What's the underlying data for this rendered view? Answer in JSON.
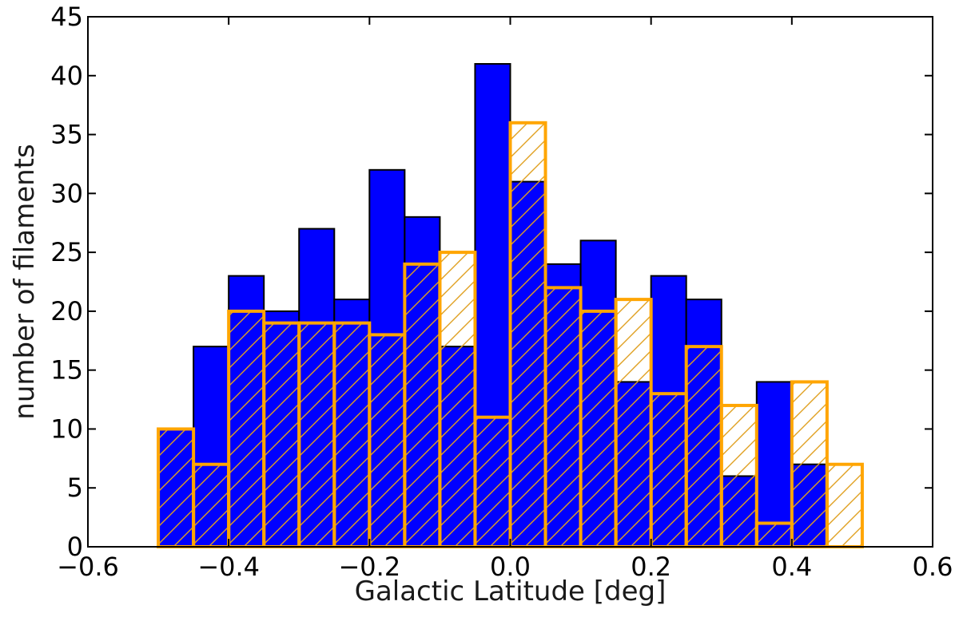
{
  "chart_data": {
    "type": "bar",
    "bin_edges": [
      -0.5,
      -0.45,
      -0.4,
      -0.35,
      -0.3,
      -0.25,
      -0.2,
      -0.15,
      -0.1,
      -0.05,
      0.0,
      0.05,
      0.1,
      0.15,
      0.2,
      0.25,
      0.3,
      0.35,
      0.4,
      0.45,
      0.5
    ],
    "series": [
      {
        "values": [
          10,
          17,
          23,
          20,
          27,
          21,
          32,
          28,
          17,
          41,
          31,
          24,
          26,
          14,
          23,
          21,
          6,
          14,
          7,
          0
        ],
        "fill": "#0000ff",
        "edge": "#000000",
        "hatch": false
      },
      {
        "values": [
          10,
          7,
          20,
          19,
          19,
          19,
          18,
          24,
          25,
          11,
          36,
          22,
          20,
          21,
          13,
          17,
          12,
          2,
          14,
          7
        ],
        "fill": "none",
        "edge": "#ffa500",
        "hatch": true
      }
    ],
    "xlabel": "Galactic Latitude [deg]",
    "ylabel": "number of filaments",
    "xlim": [
      -0.6,
      0.6
    ],
    "ylim": [
      0,
      45
    ],
    "xticks": [
      -0.6,
      -0.4,
      -0.2,
      0.0,
      0.2,
      0.4,
      0.6
    ],
    "xtick_labels": [
      "−0.6",
      "−0.4",
      "−0.2",
      "0.0",
      "0.2",
      "0.4",
      "0.6"
    ],
    "yticks": [
      0,
      5,
      10,
      15,
      20,
      25,
      30,
      35,
      40,
      45
    ],
    "ytick_labels": [
      "0",
      "5",
      "10",
      "15",
      "20",
      "25",
      "30",
      "35",
      "40",
      "45"
    ],
    "grid": false
  }
}
